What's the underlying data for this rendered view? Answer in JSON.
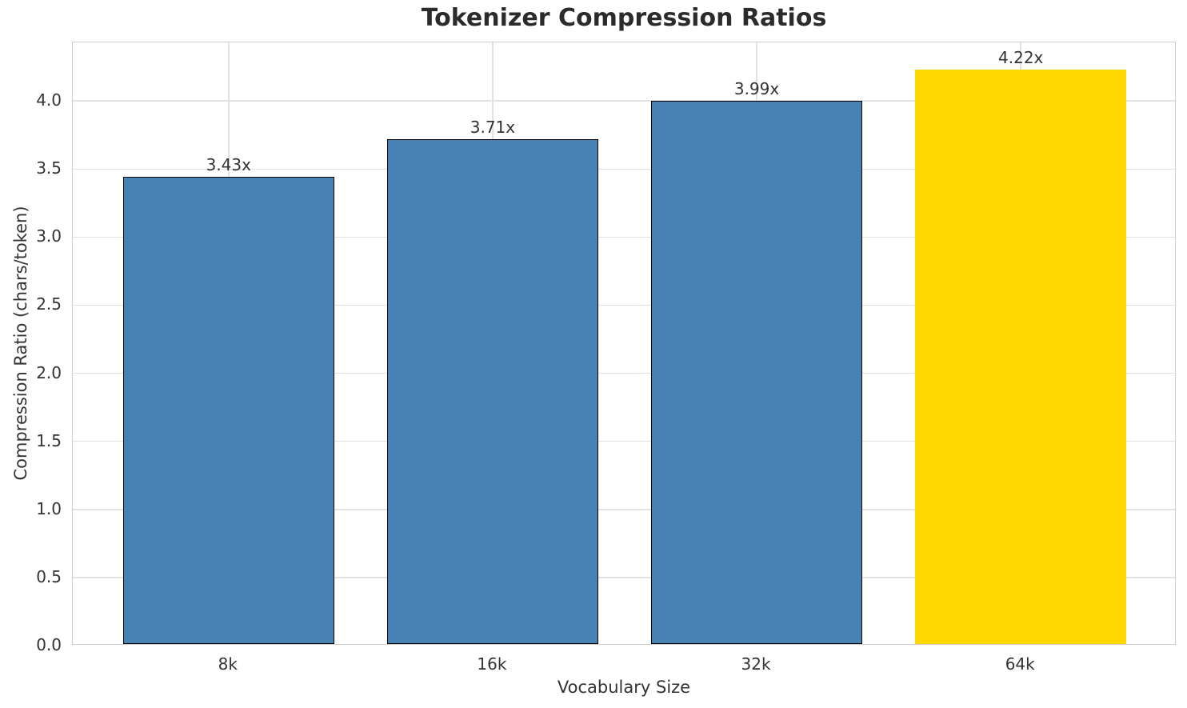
{
  "chart_data": {
    "type": "bar",
    "title": "Tokenizer Compression Ratios",
    "xlabel": "Vocabulary Size",
    "ylabel": "Compression Ratio (chars/token)",
    "categories": [
      "8k",
      "16k",
      "32k",
      "64k"
    ],
    "values": [
      3.43,
      3.71,
      3.99,
      4.22
    ],
    "bar_labels": [
      "3.43x",
      "3.71x",
      "3.99x",
      "4.22x"
    ],
    "yticks": [
      0,
      0.5,
      1,
      1.5,
      2,
      2.5,
      3,
      3.5,
      4
    ],
    "ytick_labels": [
      "0.0",
      "0.5",
      "1.0",
      "1.5",
      "2.0",
      "2.5",
      "3.0",
      "3.5",
      "4.0"
    ],
    "ylim": [
      0,
      4.43
    ],
    "xlim": [
      -0.59,
      3.59
    ],
    "bar_width": 0.8,
    "grid": true,
    "legend_position": "none",
    "bar_colors": [
      "#4682B4",
      "#4682B4",
      "#4682B4",
      "#FFD700"
    ],
    "bar_edge_colors": [
      "#000000",
      "#000000",
      "#000000",
      "none"
    ],
    "highlight_index": 3
  },
  "style": {
    "background": "#ffffff",
    "grid_color": "#e2e2e2",
    "spine_color": "#cdcdcd",
    "text_color": "#333333",
    "title_color": "#2b2b2b"
  }
}
